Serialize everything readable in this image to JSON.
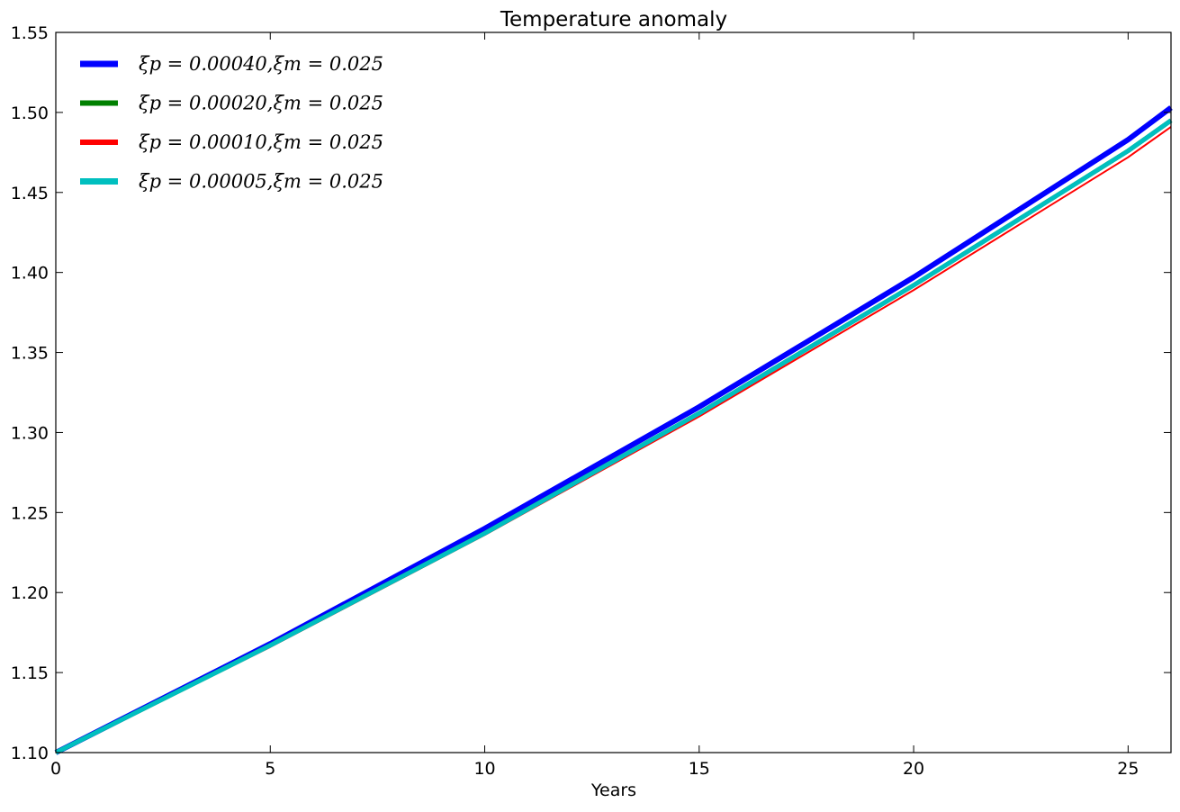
{
  "chart_data": {
    "type": "line",
    "title": "Temperature anomaly",
    "xlabel": "Years",
    "ylabel": "",
    "xlim": [
      0,
      26
    ],
    "ylim": [
      1.1,
      1.55
    ],
    "x_ticks": [
      0,
      5,
      10,
      15,
      20,
      25
    ],
    "x_tick_labels": [
      "0",
      "5",
      "10",
      "15",
      "20",
      "25"
    ],
    "y_ticks": [
      1.1,
      1.15,
      1.2,
      1.25,
      1.3,
      1.35,
      1.4,
      1.45,
      1.5,
      1.55
    ],
    "y_tick_labels": [
      "1.10",
      "1.15",
      "1.20",
      "1.25",
      "1.30",
      "1.35",
      "1.40",
      "1.45",
      "1.50",
      "1.55"
    ],
    "grid": false,
    "legend_position": "top-left",
    "x": [
      0,
      5,
      10,
      15,
      20,
      25,
      26
    ],
    "series": [
      {
        "name": "ξp = 0.00040,ξm = 0.025",
        "color": "#0000ff",
        "values": [
          1.1,
          1.168,
          1.24,
          1.316,
          1.397,
          1.483,
          1.503
        ]
      },
      {
        "name": "ξp = 0.00020,ξm = 0.025",
        "color": "#008000",
        "values": [
          1.1,
          1.167,
          1.237,
          1.312,
          1.392,
          1.476,
          1.495
        ]
      },
      {
        "name": "ξp = 0.00010,ξm = 0.025",
        "color": "#ff0000",
        "values": [
          1.1,
          1.166,
          1.236,
          1.31,
          1.389,
          1.472,
          1.491
        ]
      },
      {
        "name": "ξp = 0.00005,ξm = 0.025",
        "color": "#00bfbf",
        "values": [
          1.1,
          1.167,
          1.237,
          1.312,
          1.392,
          1.476,
          1.495
        ]
      }
    ]
  }
}
